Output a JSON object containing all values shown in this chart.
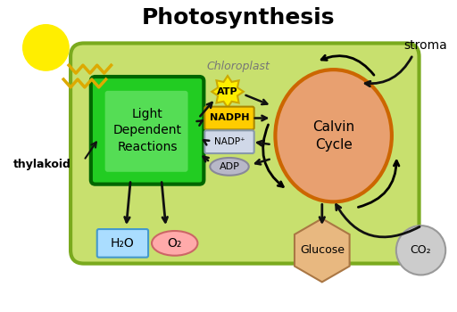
{
  "title": "Photosynthesis",
  "chloroplast_label": "Chloroplast",
  "stroma_label": "stroma",
  "thylakoid_label": "thylakoid",
  "light_reactions_text": "Light\nDependent\nReactions",
  "calvin_cycle_text": "Calvin\nCycle",
  "atp_text": "ATP",
  "nadph_text": "NADPH",
  "nadp_text": "NADP⁺",
  "adp_text": "ADP",
  "h2o_text": "H₂O",
  "o2_text": "O₂",
  "glucose_text": "Glucose",
  "co2_text": "CO₂",
  "bg_color": "#ffffff",
  "chloroplast_fill": "#c8e06e",
  "chloroplast_edge": "#7aaa1e",
  "light_rxn_fill": "#22cc22",
  "light_rxn_edge": "#006600",
  "calvin_fill": "#e8a070",
  "calvin_edge": "#cc6600",
  "atp_fill": "#ffee00",
  "nadph_fill": "#ffcc00",
  "nadp_fill": "#d0d8e8",
  "adp_fill": "#b8b8c8",
  "h2o_fill": "#aaddff",
  "o2_fill": "#ffaaaa",
  "glucose_fill": "#e8b880",
  "co2_fill": "#cccccc",
  "sun_color": "#ffee00",
  "sun_ray_color": "#ddaa00",
  "arrow_color": "#111111"
}
